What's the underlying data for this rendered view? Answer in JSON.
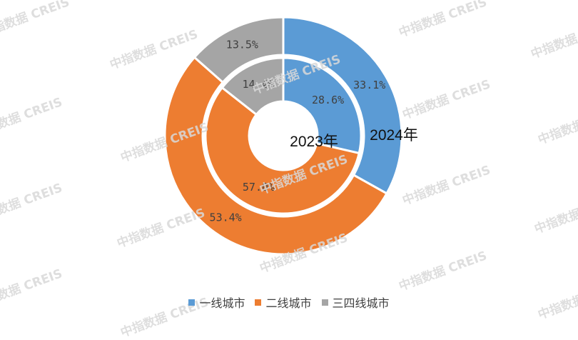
{
  "watermark": "中指数据 CREIS",
  "chart_data": {
    "type": "pie",
    "variant": "nested-donut",
    "categories": [
      "一线城市",
      "二线城市",
      "三四线城市"
    ],
    "colors": [
      "#5b9bd5",
      "#ed7d31",
      "#a5a5a5"
    ],
    "series": [
      {
        "name": "2024年",
        "ring": "outer",
        "values": [
          33.1,
          53.4,
          13.5
        ],
        "labels": [
          "33.1%",
          "53.4%",
          "13.5%"
        ]
      },
      {
        "name": "2023年",
        "ring": "inner",
        "values": [
          28.6,
          57.0,
          14.4
        ],
        "labels": [
          "28.6%",
          "57.0%",
          "14.4%"
        ]
      }
    ],
    "legend_position": "bottom"
  }
}
